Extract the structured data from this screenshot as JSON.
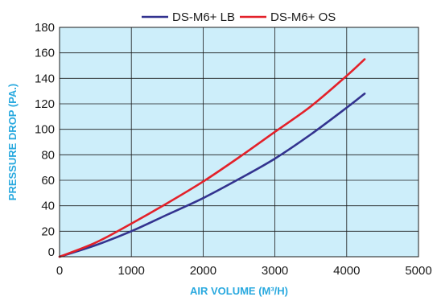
{
  "chart_data": {
    "type": "line",
    "xlabel": "AIR VOLUME (M³/H)",
    "ylabel": "PRESSURE  DROP (PA.)",
    "xlim": [
      0,
      5000
    ],
    "ylim": [
      0,
      180
    ],
    "x_ticks": [
      "0",
      "1000",
      "2000",
      "3000",
      "4000",
      "5000"
    ],
    "y_ticks": [
      "0",
      "20",
      "40",
      "60",
      "80",
      "100",
      "120",
      "140",
      "160",
      "180"
    ],
    "grid": true,
    "legend_position": "top",
    "plot_background": "#cdeefa",
    "grid_color": "#1a1a1a",
    "series": [
      {
        "name": "DS-M6+ LB",
        "color": "#33338f",
        "x": [
          0,
          500,
          1000,
          1500,
          2000,
          2500,
          3000,
          3500,
          4000,
          4250
        ],
        "y": [
          0,
          9,
          20,
          33,
          46,
          61,
          77,
          96,
          117,
          128
        ]
      },
      {
        "name": "DS-M6+ OS",
        "color": "#e3212a",
        "x": [
          0,
          500,
          1000,
          1500,
          2000,
          2500,
          3000,
          3500,
          4000,
          4250
        ],
        "y": [
          0,
          11,
          26,
          42,
          59,
          78,
          98,
          118,
          142,
          155
        ]
      }
    ]
  }
}
